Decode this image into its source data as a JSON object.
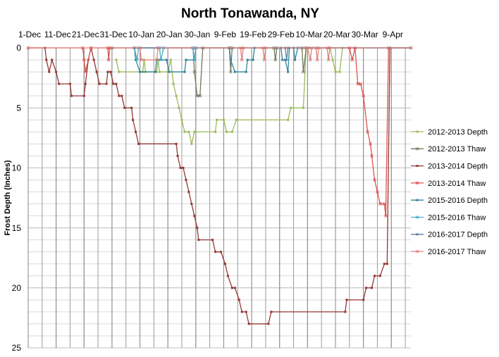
{
  "chart_data": {
    "type": "line",
    "title": "North Tonawanda, NY",
    "ylabel": "Frost Depth (Inches)",
    "y_inverted": true,
    "grid": true,
    "grid_minor_step": 1,
    "legend": "right",
    "xlim": [
      0,
      137
    ],
    "ylim": [
      0,
      25
    ],
    "xticks": [
      {
        "value": 0,
        "label": "1-Dec"
      },
      {
        "value": 10,
        "label": "11-Dec"
      },
      {
        "value": 20,
        "label": "21-Dec"
      },
      {
        "value": 30,
        "label": "31-Dec"
      },
      {
        "value": 40,
        "label": "10-Jan"
      },
      {
        "value": 50,
        "label": "20-Jan"
      },
      {
        "value": 60,
        "label": "30-Jan"
      },
      {
        "value": 70,
        "label": "9-Feb"
      },
      {
        "value": 80,
        "label": "19-Feb"
      },
      {
        "value": 90,
        "label": "29-Feb"
      },
      {
        "value": 100,
        "label": "10-Mar"
      },
      {
        "value": 110,
        "label": "20-Mar"
      },
      {
        "value": 120,
        "label": "30-Mar"
      },
      {
        "value": 130,
        "label": "9-Apr"
      }
    ],
    "yticks": [
      0,
      5,
      10,
      15,
      20,
      25
    ],
    "series": [
      {
        "name": "2012-2013 Depth",
        "color": "#9bbb59",
        "marker": "square",
        "x": [
          31.5,
          32.5,
          41,
          41.5,
          42,
          46,
          46.5,
          47,
          50,
          51,
          52,
          53,
          54,
          55,
          56,
          57.5,
          58.5,
          59.5,
          67,
          67.5,
          70,
          71,
          73,
          74.5,
          93,
          94,
          98.5,
          99.5,
          108,
          109,
          110,
          111.5,
          112.5
        ],
        "values": [
          1,
          2,
          2,
          1,
          2,
          2,
          1,
          2,
          2,
          1,
          3,
          4,
          5,
          6,
          7,
          7,
          8,
          7,
          7,
          6,
          6,
          7,
          7,
          6,
          6,
          5,
          5,
          0,
          0,
          1,
          2,
          2,
          0
        ]
      },
      {
        "name": "2012-2013 Thaw",
        "color": "#6f7a5e",
        "marker": "x",
        "x": [
          30,
          59,
          59.5,
          60.5,
          61.5,
          62.5,
          72,
          72.5,
          73,
          88,
          88.5,
          89,
          98,
          98.5,
          99.5,
          137
        ],
        "values": [
          0,
          0,
          2,
          4,
          4,
          0,
          0,
          2,
          0,
          0,
          1,
          0,
          0,
          2,
          0,
          0
        ]
      },
      {
        "name": "2013-2014 Depth",
        "color": "#953735",
        "marker": "square",
        "x": [
          0,
          6,
          6.5,
          7.5,
          8.5,
          10,
          11,
          15,
          15.5,
          20,
          20.5,
          21.5,
          22.5,
          23.5,
          24.5,
          25.5,
          28,
          28.5,
          29.5,
          30.5,
          31.5,
          32.5,
          33.5,
          34.5,
          37,
          37.5,
          38.5,
          39.5,
          53,
          53.5,
          54.5,
          55.5,
          56.5,
          57.5,
          58.5,
          59.5,
          60.5,
          61,
          66,
          67,
          69,
          70.5,
          71.5,
          73,
          74,
          75.5,
          76.5,
          78,
          79,
          86,
          87,
          113.5,
          114,
          120,
          121,
          123,
          124,
          126,
          127.5,
          128.5,
          129.5,
          137
        ],
        "values": [
          0,
          0,
          1,
          2,
          1,
          2,
          3,
          3,
          4,
          4,
          3,
          1,
          0,
          1,
          2,
          3,
          3,
          2,
          2,
          3,
          3,
          4,
          4,
          5,
          5,
          6,
          7,
          8,
          8,
          9,
          10,
          10,
          11,
          12,
          13,
          14,
          15,
          16,
          16,
          17,
          17,
          18,
          19,
          20,
          20,
          21,
          22,
          22,
          23,
          23,
          22,
          22,
          21,
          21,
          20,
          20,
          19,
          19,
          18,
          18,
          0,
          0
        ]
      },
      {
        "name": "2013-2014 Thaw",
        "color": "#d9534f",
        "marker": "x",
        "x": [
          0,
          19.5,
          20,
          20.5,
          22.5,
          28.5,
          28.8,
          29.2,
          115,
          116,
          117,
          118,
          119,
          120,
          121.5,
          122.5,
          123,
          124,
          125,
          126,
          127.5,
          128,
          129,
          137
        ],
        "values": [
          0,
          0,
          1,
          2,
          0,
          0,
          1,
          0,
          0,
          1,
          0,
          3,
          3,
          4,
          7,
          8,
          9,
          11,
          12,
          13,
          13,
          14,
          0,
          0
        ]
      },
      {
        "name": "2015-2016 Depth",
        "color": "#31849b",
        "marker": "square",
        "x": [
          38,
          38.5,
          40,
          45.5,
          46,
          49.5,
          50.5,
          56,
          56.5,
          59.5,
          60,
          72,
          72.5,
          74,
          78,
          78.5,
          80.5,
          81,
          90.5,
          91,
          92,
          93,
          93.5,
          95,
          95.5,
          96.5,
          137
        ],
        "values": [
          0,
          1,
          2,
          2,
          1,
          1,
          2,
          2,
          1,
          1,
          0,
          0,
          1,
          2,
          2,
          1,
          1,
          0,
          0,
          1,
          1,
          2,
          0,
          0,
          1,
          0,
          0
        ]
      },
      {
        "name": "2015-2016 Thaw",
        "color": "#4bacc6",
        "marker": "x",
        "x": [
          38,
          39,
          39.5,
          47,
          47.5,
          48.5,
          59,
          59.5,
          60,
          137
        ],
        "values": [
          0,
          1,
          0,
          0,
          1,
          0,
          0,
          1,
          0,
          0
        ]
      },
      {
        "name": "2016-2017 Depth",
        "color": "#5b7ea6",
        "marker": "square",
        "x": [
          38,
          92,
          92.5,
          93,
          137
        ],
        "values": [
          0,
          0,
          1,
          0,
          0
        ]
      },
      {
        "name": "2016-2017 Thaw",
        "color": "#e2807a",
        "marker": "x",
        "x": [
          0,
          40,
          40.5,
          46,
          46.5,
          76,
          76.5,
          77,
          84,
          84.5,
          85,
          100,
          101,
          101.5,
          103,
          103.5,
          104,
          107,
          107.5,
          108,
          137
        ],
        "values": [
          0,
          0,
          1,
          1,
          0,
          0,
          1,
          0,
          0,
          1,
          0,
          0,
          1,
          0,
          0,
          1,
          0,
          0,
          1,
          0,
          0
        ]
      }
    ]
  }
}
